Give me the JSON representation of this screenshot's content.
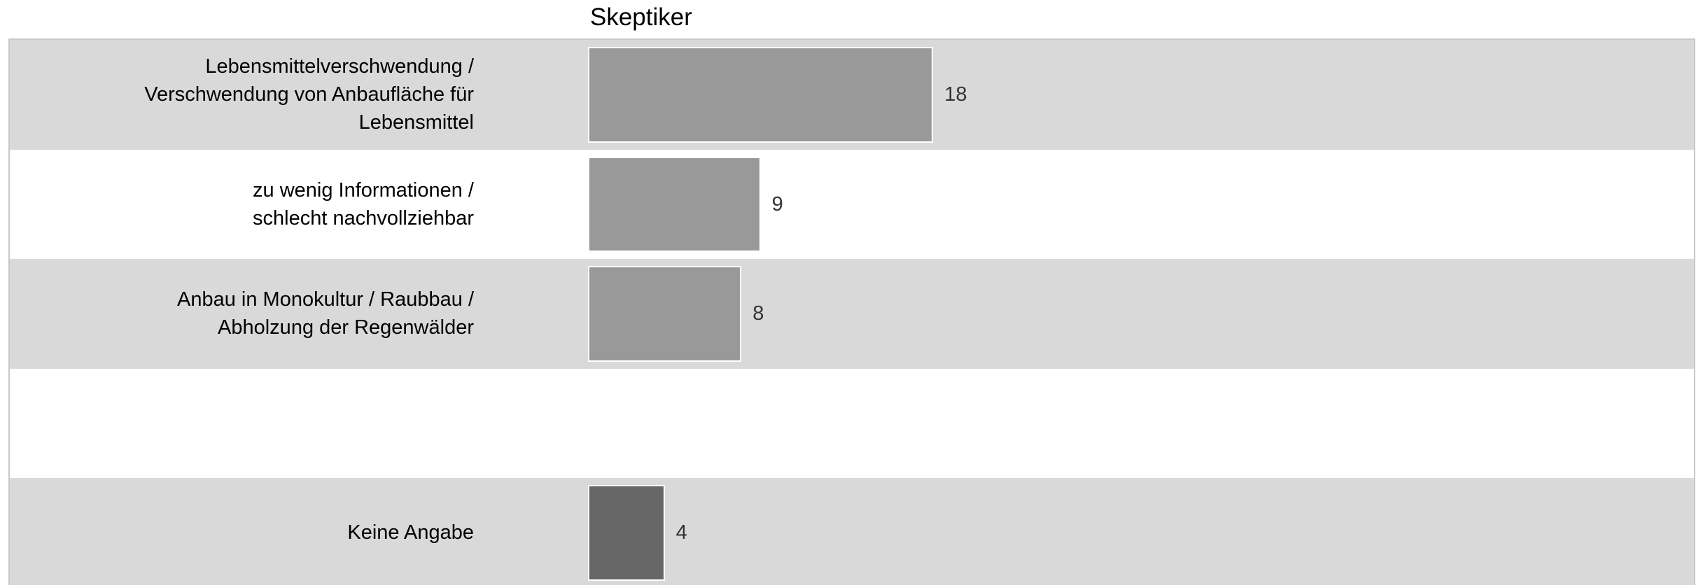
{
  "chart_data": {
    "type": "bar",
    "orientation": "horizontal",
    "title": "Skeptiker",
    "categories": [
      "Lebensmittelverschwendung /\nVerschwendung von Anbaufläche für\nLebensmittel",
      "zu wenig Informationen /\nschlecht nachvollziehbar",
      "Anbau in Monokultur / Raubbau /\nAbholzung der Regenwälder",
      "",
      "Keine Angabe"
    ],
    "values": [
      18,
      9,
      8,
      null,
      4
    ],
    "value_labels": [
      "18",
      "9",
      "8",
      "",
      "4"
    ],
    "bar_colors": [
      "#999999",
      "#999999",
      "#999999",
      null,
      "#666666"
    ],
    "row_colors": [
      "#d9d9d9",
      "#ffffff",
      "#d9d9d9",
      "#ffffff",
      "#d9d9d9"
    ],
    "xlim": [
      0,
      100
    ],
    "grid": false,
    "legend": "none"
  }
}
